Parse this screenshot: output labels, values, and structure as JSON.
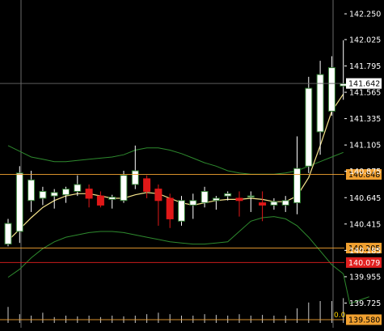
{
  "chart_data": {
    "type": "candlestick",
    "x_count": 26,
    "ylim": [
      139.58,
      142.3
    ],
    "y_ticks": [
      "142.250",
      "142.025",
      "141.795",
      "141.565",
      "141.335",
      "141.105",
      "140.875",
      "140.645",
      "140.415",
      "140.185",
      "139.955",
      "139.725"
    ],
    "candles": [
      {
        "o": 140.24,
        "h": 140.46,
        "l": 140.22,
        "c": 140.42
      },
      {
        "o": 140.35,
        "h": 140.92,
        "l": 140.25,
        "c": 140.86
      },
      {
        "o": 140.62,
        "h": 140.88,
        "l": 140.52,
        "c": 140.8
      },
      {
        "o": 140.64,
        "h": 140.74,
        "l": 140.58,
        "c": 140.7
      },
      {
        "o": 140.66,
        "h": 140.72,
        "l": 140.55,
        "c": 140.69
      },
      {
        "o": 140.67,
        "h": 140.74,
        "l": 140.6,
        "c": 140.72
      },
      {
        "o": 140.7,
        "h": 140.84,
        "l": 140.66,
        "c": 140.76
      },
      {
        "o": 140.72,
        "h": 140.76,
        "l": 140.56,
        "c": 140.64
      },
      {
        "o": 140.66,
        "h": 140.7,
        "l": 140.56,
        "c": 140.58
      },
      {
        "o": 140.63,
        "h": 140.67,
        "l": 140.55,
        "c": 140.65
      },
      {
        "o": 140.62,
        "h": 140.88,
        "l": 140.6,
        "c": 140.84
      },
      {
        "o": 140.76,
        "h": 141.1,
        "l": 140.72,
        "c": 140.88
      },
      {
        "o": 140.81,
        "h": 140.84,
        "l": 140.64,
        "c": 140.7
      },
      {
        "o": 140.72,
        "h": 140.76,
        "l": 140.4,
        "c": 140.62
      },
      {
        "o": 140.64,
        "h": 140.68,
        "l": 140.38,
        "c": 140.46
      },
      {
        "o": 140.44,
        "h": 140.66,
        "l": 140.4,
        "c": 140.62
      },
      {
        "o": 140.58,
        "h": 140.68,
        "l": 140.46,
        "c": 140.62
      },
      {
        "o": 140.6,
        "h": 140.74,
        "l": 140.56,
        "c": 140.7
      },
      {
        "o": 140.62,
        "h": 140.66,
        "l": 140.54,
        "c": 140.64
      },
      {
        "o": 140.66,
        "h": 140.7,
        "l": 140.62,
        "c": 140.68
      },
      {
        "o": 140.64,
        "h": 140.7,
        "l": 140.48,
        "c": 140.62
      },
      {
        "o": 140.66,
        "h": 140.7,
        "l": 140.52,
        "c": 140.66
      },
      {
        "o": 140.6,
        "h": 140.7,
        "l": 140.44,
        "c": 140.58
      },
      {
        "o": 140.58,
        "h": 140.64,
        "l": 140.54,
        "c": 140.61
      },
      {
        "o": 140.58,
        "h": 140.66,
        "l": 140.52,
        "c": 140.62
      },
      {
        "o": 140.6,
        "h": 141.18,
        "l": 140.5,
        "c": 140.9
      },
      {
        "o": 140.92,
        "h": 141.7,
        "l": 140.86,
        "c": 141.6
      },
      {
        "o": 141.22,
        "h": 141.84,
        "l": 141.02,
        "c": 141.72
      },
      {
        "o": 141.4,
        "h": 141.88,
        "l": 141.36,
        "c": 141.78
      },
      {
        "o": 141.62,
        "h": 142.02,
        "l": 141.5,
        "c": 141.64
      }
    ],
    "ma": [
      140.27,
      140.37,
      140.47,
      140.56,
      140.62,
      140.66,
      140.68,
      140.68,
      140.66,
      140.64,
      140.64,
      140.67,
      140.69,
      140.68,
      140.64,
      140.6,
      140.58,
      140.6,
      140.62,
      140.63,
      140.63,
      140.64,
      140.63,
      140.61,
      140.61,
      140.66,
      140.82,
      141.1,
      141.4,
      141.55
    ],
    "bb_upper": [
      141.1,
      141.05,
      141.0,
      140.98,
      140.96,
      140.96,
      140.97,
      140.98,
      140.99,
      141.0,
      141.02,
      141.06,
      141.08,
      141.08,
      141.06,
      141.03,
      140.99,
      140.95,
      140.92,
      140.88,
      140.86,
      140.85,
      140.85,
      140.85,
      140.86,
      140.88,
      140.92,
      140.96,
      141.0,
      141.04
    ],
    "bb_lower": [
      139.95,
      140.02,
      140.12,
      140.2,
      140.26,
      140.3,
      140.32,
      140.34,
      140.35,
      140.35,
      140.34,
      140.32,
      140.3,
      140.28,
      140.26,
      140.25,
      140.24,
      140.24,
      140.25,
      140.26,
      140.35,
      140.44,
      140.47,
      140.48,
      140.46,
      140.4,
      140.3,
      140.18,
      140.06,
      139.98
    ],
    "bb_lower_late": [
      139.72,
      139.74,
      139.76,
      139.78
    ],
    "volume": [
      0.22,
      0.12,
      0.1,
      0.14,
      0.08,
      0.1,
      0.09,
      0.1,
      0.08,
      0.1,
      0.09,
      0.1,
      0.12,
      0.14,
      0.12,
      0.1,
      0.1,
      0.12,
      0.11,
      0.1,
      0.12,
      0.1,
      0.11,
      0.1,
      0.1,
      0.2,
      0.28,
      0.3,
      0.3,
      0.34
    ],
    "hlines": [
      {
        "value": 141.642,
        "label": "141.642",
        "color": "#ffffff",
        "text_color": "#000000",
        "line": "#666666"
      },
      {
        "value": 140.848,
        "label": "140.848",
        "color": "#f0a030",
        "text_color": "#000000",
        "line": "#f0a030"
      },
      {
        "value": 140.205,
        "label": "140.205",
        "color": "#f0a030",
        "text_color": "#000000",
        "line": "#f0a030"
      },
      {
        "value": 140.079,
        "label": "140.079",
        "color": "#e02020",
        "text_color": "#ffffff",
        "line": "#e02020"
      },
      {
        "value": 139.58,
        "label": "139.580",
        "color": "#f0a030",
        "text_color": "#000000",
        "line": "#f0a030"
      }
    ],
    "volume_zero_label": "0.0",
    "colors": {
      "bull_fill": "#ffffff",
      "bull_stroke": "#2e7a2e",
      "bear_fill": "#e01818",
      "wick": "#ffffff",
      "ma": "#f6e48c",
      "bands": "#2e8a2e",
      "grid": "#ffffff",
      "axis_text": "#ffffff",
      "volume": "#cccccc"
    }
  }
}
